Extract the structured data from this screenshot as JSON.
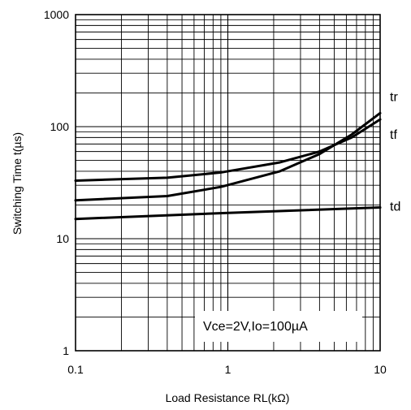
{
  "chart_data": {
    "type": "line",
    "x_scale": "log",
    "y_scale": "log",
    "xlim": [
      0.1,
      10
    ],
    "ylim": [
      1,
      1000
    ],
    "x_ticks": [
      "0.1",
      "1",
      "10"
    ],
    "y_ticks": [
      "1",
      "10",
      "100",
      "1000"
    ],
    "xlabel": "Load Resistance RL(kΩ)",
    "ylabel": "Switching Time t(µs)",
    "annotation": "Vce=2V,Io=100µA",
    "grid": true,
    "series": [
      {
        "name": "tr",
        "x": [
          0.1,
          0.4,
          0.9,
          2.2,
          4,
          6.5,
          10
        ],
        "y": [
          22,
          24,
          29,
          40,
          57,
          85,
          132
        ]
      },
      {
        "name": "tf",
        "x": [
          0.1,
          0.4,
          0.9,
          2.2,
          4,
          6.5,
          10
        ],
        "y": [
          33,
          35,
          39,
          48,
          60,
          80,
          116
        ]
      },
      {
        "name": "td",
        "x": [
          0.1,
          1,
          10
        ],
        "y": [
          15,
          17,
          19
        ]
      }
    ]
  }
}
